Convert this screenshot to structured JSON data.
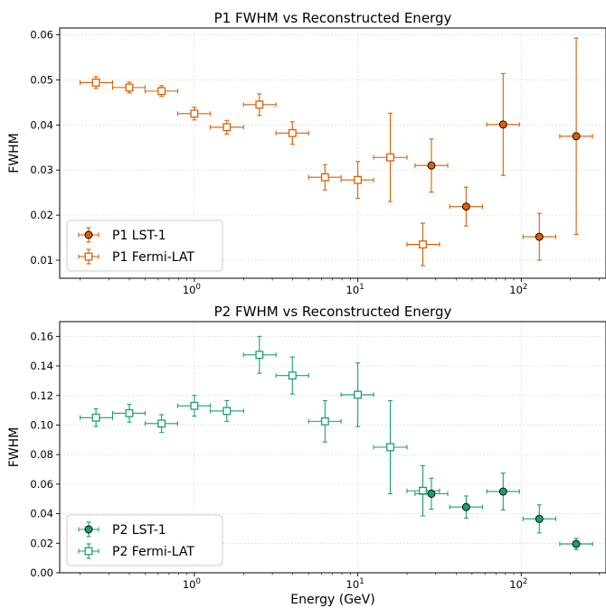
{
  "chart_data": [
    {
      "type": "scatter",
      "title": "P1 FWHM vs Reconstructed Energy",
      "xlabel": "",
      "ylabel": "FWHM",
      "xscale": "log",
      "xlim": [
        0.15,
        330
      ],
      "ylim": [
        0.006,
        0.0615
      ],
      "yticks": [
        0.01,
        0.02,
        0.03,
        0.04,
        0.05,
        0.06
      ],
      "ytick_labels": [
        "0.01",
        "0.02",
        "0.03",
        "0.04",
        "0.05",
        "0.06"
      ],
      "xticks": [
        1,
        10,
        100
      ],
      "xtick_base": "10",
      "xtick_exponents": [
        "0",
        "1",
        "2"
      ],
      "grid": true,
      "legend_position": "lower-left",
      "series": [
        {
          "name": "P1 Fermi-LAT",
          "marker": "open-square",
          "color": "#d95f02",
          "points": [
            {
              "x": 0.25,
              "y": 0.0494,
              "xlo": 0.2,
              "xhi": 0.316,
              "yerr": 0.0013
            },
            {
              "x": 0.4,
              "y": 0.0483,
              "xlo": 0.316,
              "xhi": 0.5,
              "yerr": 0.0012
            },
            {
              "x": 0.63,
              "y": 0.0475,
              "xlo": 0.5,
              "xhi": 0.79,
              "yerr": 0.0012
            },
            {
              "x": 1.0,
              "y": 0.0425,
              "xlo": 0.79,
              "xhi": 1.25,
              "yerr": 0.0014
            },
            {
              "x": 1.58,
              "y": 0.0395,
              "xlo": 1.25,
              "xhi": 2.0,
              "yerr": 0.0015
            },
            {
              "x": 2.5,
              "y": 0.0445,
              "xlo": 2.0,
              "xhi": 3.16,
              "yerr": 0.0024
            },
            {
              "x": 3.98,
              "y": 0.0382,
              "xlo": 3.16,
              "xhi": 5.0,
              "yerr": 0.0025
            },
            {
              "x": 6.3,
              "y": 0.0284,
              "xlo": 5.0,
              "xhi": 7.9,
              "yerr": 0.0028
            },
            {
              "x": 10.0,
              "y": 0.0278,
              "xlo": 7.9,
              "xhi": 12.5,
              "yerr": 0.0041
            },
            {
              "x": 15.8,
              "y": 0.0328,
              "xlo": 12.5,
              "xhi": 20.0,
              "yerr": 0.0098
            },
            {
              "x": 25.0,
              "y": 0.0135,
              "xlo": 20.0,
              "xhi": 31.6,
              "yerr": 0.0047
            }
          ]
        },
        {
          "name": "P1 LST-1",
          "marker": "filled-circle",
          "color": "#d95f02",
          "points": [
            {
              "x": 28.2,
              "y": 0.031,
              "xlo": 22.4,
              "xhi": 35.5,
              "yerr": 0.0059
            },
            {
              "x": 46.0,
              "y": 0.0219,
              "xlo": 36.5,
              "xhi": 58.0,
              "yerr": 0.0043
            },
            {
              "x": 77.5,
              "y": 0.0401,
              "xlo": 61.5,
              "xhi": 97.5,
              "yerr": 0.0113
            },
            {
              "x": 129.0,
              "y": 0.0152,
              "xlo": 102.5,
              "xhi": 162.5,
              "yerr": 0.0052
            },
            {
              "x": 217.0,
              "y": 0.0375,
              "xlo": 172.0,
              "xhi": 273.0,
              "yerr": 0.0218
            }
          ]
        }
      ]
    },
    {
      "type": "scatter",
      "title": "P2 FWHM vs Reconstructed Energy",
      "xlabel": "Energy (GeV)",
      "ylabel": "FWHM",
      "xscale": "log",
      "xlim": [
        0.15,
        330
      ],
      "ylim": [
        0.0,
        0.17
      ],
      "yticks": [
        0.0,
        0.02,
        0.04,
        0.06,
        0.08,
        0.1,
        0.12,
        0.14,
        0.16
      ],
      "ytick_labels": [
        "0.00",
        "0.02",
        "0.04",
        "0.06",
        "0.08",
        "0.10",
        "0.12",
        "0.14",
        "0.16"
      ],
      "xticks": [
        1,
        10,
        100
      ],
      "xtick_base": "10",
      "xtick_exponents": [
        "0",
        "1",
        "2"
      ],
      "grid": true,
      "legend_position": "lower-left",
      "series": [
        {
          "name": "P2 Fermi-LAT",
          "marker": "open-square",
          "color": "#1b9e77",
          "points": [
            {
              "x": 0.25,
              "y": 0.105,
              "xlo": 0.2,
              "xhi": 0.316,
              "yerr": 0.006
            },
            {
              "x": 0.4,
              "y": 0.108,
              "xlo": 0.316,
              "xhi": 0.5,
              "yerr": 0.006
            },
            {
              "x": 0.63,
              "y": 0.101,
              "xlo": 0.5,
              "xhi": 0.79,
              "yerr": 0.006
            },
            {
              "x": 1.0,
              "y": 0.113,
              "xlo": 0.79,
              "xhi": 1.25,
              "yerr": 0.007
            },
            {
              "x": 1.58,
              "y": 0.1095,
              "xlo": 1.25,
              "xhi": 2.0,
              "yerr": 0.007
            },
            {
              "x": 2.5,
              "y": 0.1475,
              "xlo": 2.0,
              "xhi": 3.16,
              "yerr": 0.0125
            },
            {
              "x": 3.98,
              "y": 0.1335,
              "xlo": 3.16,
              "xhi": 5.0,
              "yerr": 0.0125
            },
            {
              "x": 6.3,
              "y": 0.1025,
              "xlo": 5.0,
              "xhi": 7.9,
              "yerr": 0.014
            },
            {
              "x": 10.0,
              "y": 0.1205,
              "xlo": 7.9,
              "xhi": 12.5,
              "yerr": 0.0215
            },
            {
              "x": 15.8,
              "y": 0.085,
              "xlo": 12.5,
              "xhi": 20.0,
              "yerr": 0.0315
            },
            {
              "x": 25.0,
              "y": 0.0555,
              "xlo": 20.0,
              "xhi": 31.6,
              "yerr": 0.017
            }
          ]
        },
        {
          "name": "P2 LST-1",
          "marker": "filled-circle",
          "color": "#1b9e77",
          "points": [
            {
              "x": 28.2,
              "y": 0.0535,
              "xlo": 22.4,
              "xhi": 35.5,
              "yerr": 0.0105
            },
            {
              "x": 46.0,
              "y": 0.0445,
              "xlo": 36.5,
              "xhi": 58.0,
              "yerr": 0.0075
            },
            {
              "x": 77.5,
              "y": 0.055,
              "xlo": 61.5,
              "xhi": 97.5,
              "yerr": 0.0125
            },
            {
              "x": 129.0,
              "y": 0.0365,
              "xlo": 102.5,
              "xhi": 162.5,
              "yerr": 0.0095
            },
            {
              "x": 217.0,
              "y": 0.0195,
              "xlo": 172.0,
              "xhi": 273.0,
              "yerr": 0.0038
            }
          ]
        }
      ]
    }
  ]
}
